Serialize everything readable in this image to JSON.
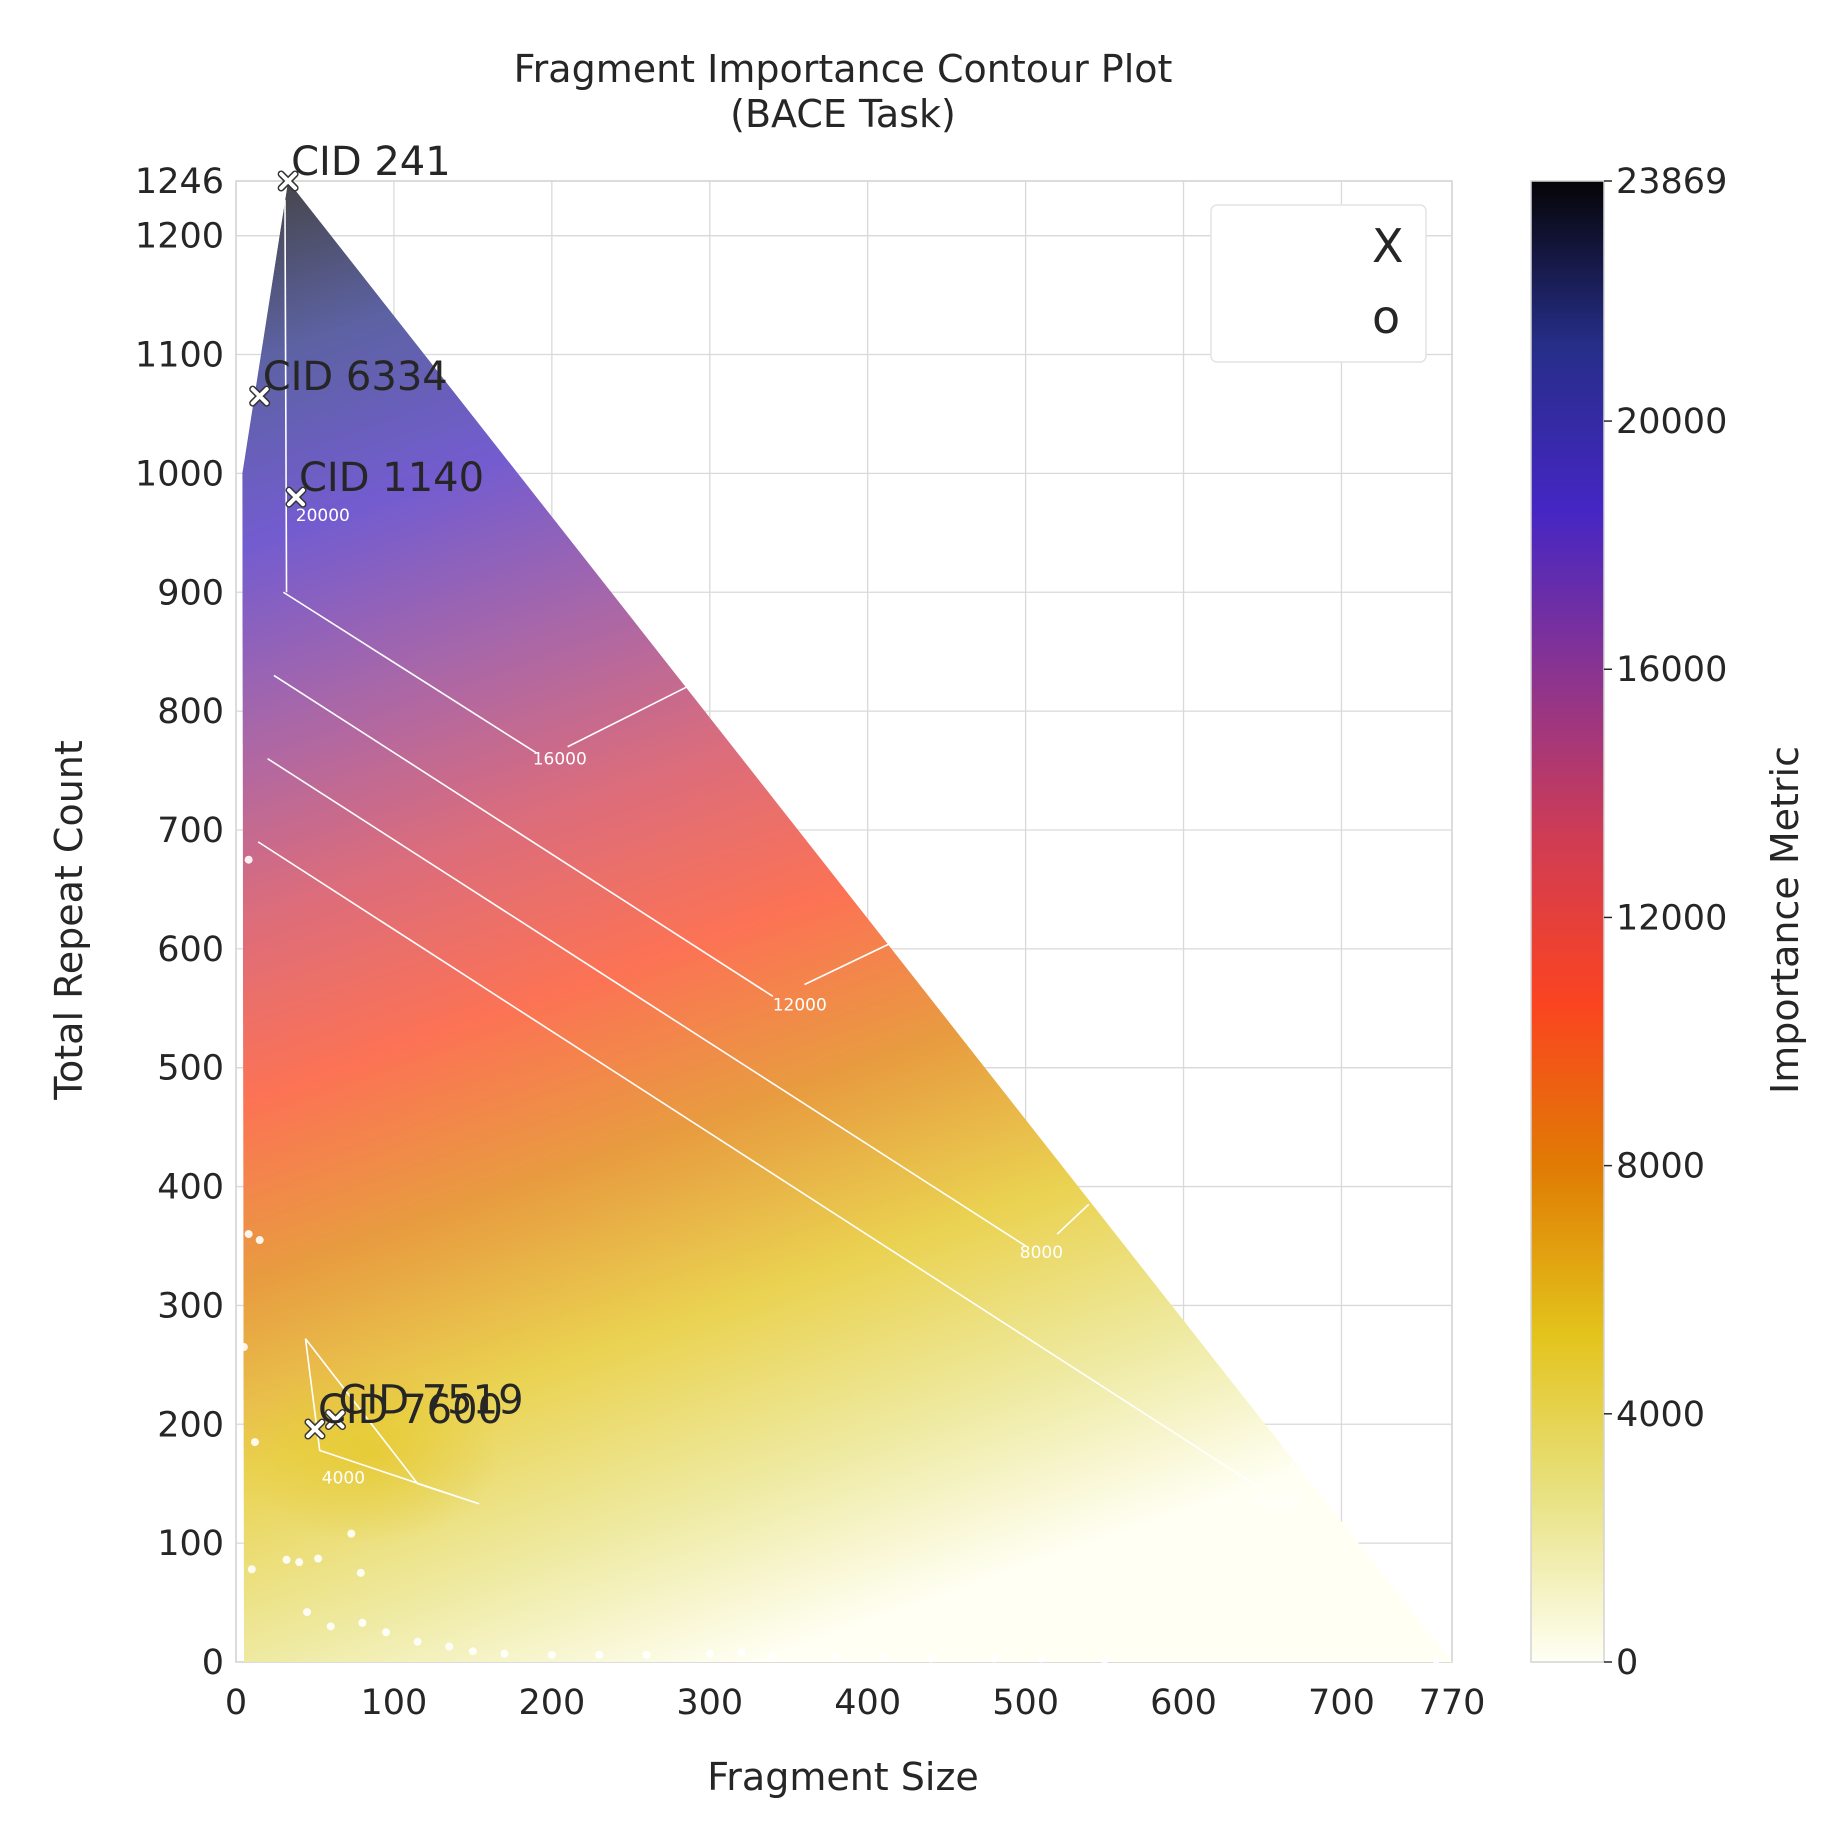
{
  "chart_data": {
    "type": "heatmap",
    "title": "Fragment Importance Contour Plot\n(BACE Task)",
    "xlabel": "Fragment Size",
    "ylabel": "Total Repeat Count",
    "xlim": [
      0,
      770
    ],
    "ylim": [
      0,
      1246
    ],
    "x_ticks": [
      "0",
      "100",
      "200",
      "300",
      "400",
      "500",
      "600",
      "700",
      "770"
    ],
    "y_ticks": [
      "0",
      "100",
      "200",
      "300",
      "400",
      "500",
      "600",
      "700",
      "800",
      "900",
      "1000",
      "1100",
      "1200",
      "1246"
    ],
    "grid": true,
    "colorbar": {
      "label": "Importance Metric",
      "range": [
        0,
        23869
      ],
      "ticks": [
        "0",
        "4000",
        "8000",
        "12000",
        "16000",
        "20000",
        "23869"
      ],
      "colormap": [
        "#fffff4",
        "#e8e283",
        "#e3c31b",
        "#e07c04",
        "#fb4420",
        "#d03c54",
        "#8b3490",
        "#4526c4",
        "#262e88",
        "#060407"
      ]
    },
    "contour_levels": [
      4000,
      8000,
      12000,
      16000,
      20000
    ],
    "contour_labels": [
      "4000",
      "4000",
      "8000",
      "12000",
      "16000",
      "20000"
    ],
    "legend": {
      "position": "top-right",
      "entries": [
        "X",
        "o"
      ]
    },
    "annotated_points": [
      {
        "label": "CID 241",
        "x": 33,
        "y": 1246
      },
      {
        "label": "CID 6334",
        "x": 15,
        "y": 1065
      },
      {
        "label": "CID 1140",
        "x": 38,
        "y": 980
      },
      {
        "label": "CID 7519",
        "x": 63,
        "y": 204
      },
      {
        "label": "CID 7600",
        "x": 50,
        "y": 196
      }
    ],
    "scatter_points": [
      [
        8,
        675
      ],
      [
        8,
        360
      ],
      [
        15,
        355
      ],
      [
        5,
        265
      ],
      [
        12,
        185
      ],
      [
        10,
        78
      ],
      [
        32,
        86
      ],
      [
        40,
        84
      ],
      [
        52,
        87
      ],
      [
        73,
        108
      ],
      [
        79,
        75
      ],
      [
        45,
        42
      ],
      [
        60,
        30
      ],
      [
        80,
        33
      ],
      [
        95,
        25
      ],
      [
        115,
        17
      ],
      [
        135,
        13
      ],
      [
        150,
        9
      ],
      [
        170,
        7
      ],
      [
        200,
        6
      ],
      [
        230,
        6
      ],
      [
        260,
        6
      ],
      [
        300,
        7
      ],
      [
        320,
        8
      ],
      [
        340,
        5
      ],
      [
        380,
        4
      ],
      [
        410,
        4
      ],
      [
        440,
        3
      ],
      [
        480,
        3
      ],
      [
        510,
        3
      ],
      [
        550,
        2
      ],
      [
        760,
        2
      ]
    ]
  }
}
